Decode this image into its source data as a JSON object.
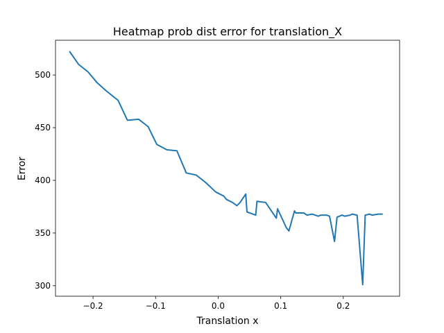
{
  "chart_data": {
    "type": "line",
    "title": "Heatmap prob dist error for translation_X",
    "xlabel": "Translation x",
    "ylabel": "Error",
    "xlim": [
      -0.26,
      0.29
    ],
    "ylim": [
      290,
      533
    ],
    "xticks": [
      -0.2,
      -0.1,
      0.0,
      0.1,
      0.2
    ],
    "xtick_labels": [
      "−0.2",
      "−0.1",
      "0.0",
      "0.1",
      "0.2"
    ],
    "yticks": [
      300,
      350,
      400,
      450,
      500
    ],
    "ytick_labels": [
      "300",
      "350",
      "400",
      "450",
      "500"
    ],
    "grid": false,
    "line_color": "#1f77b4",
    "series": [
      {
        "x": [
          -0.237,
          -0.223,
          -0.208,
          -0.194,
          -0.179,
          -0.16,
          -0.145,
          -0.127,
          -0.112,
          -0.098,
          -0.082,
          -0.066,
          -0.051,
          -0.035,
          -0.02,
          -0.004,
          0.009,
          0.013,
          0.023,
          0.03,
          0.035,
          0.044,
          0.046,
          0.06,
          0.062,
          0.076,
          0.093,
          0.095,
          0.109,
          0.113,
          0.122,
          0.124,
          0.137,
          0.142,
          0.15,
          0.16,
          0.164,
          0.173,
          0.178,
          0.186,
          0.19,
          0.198,
          0.202,
          0.211,
          0.214,
          0.222,
          0.231,
          0.235,
          0.242,
          0.246,
          0.256,
          0.262
        ],
        "y": [
          522,
          510,
          503,
          493,
          485,
          476,
          457,
          458,
          451,
          434,
          429,
          428,
          407,
          405,
          398,
          389,
          385,
          382,
          379,
          376,
          379,
          387,
          370,
          367,
          380,
          379,
          364,
          373,
          355,
          352,
          371,
          369,
          369,
          367,
          368,
          366,
          367,
          367,
          366,
          342,
          365,
          367,
          366,
          367,
          368,
          367,
          301,
          367,
          368,
          367,
          368,
          368
        ]
      }
    ]
  }
}
